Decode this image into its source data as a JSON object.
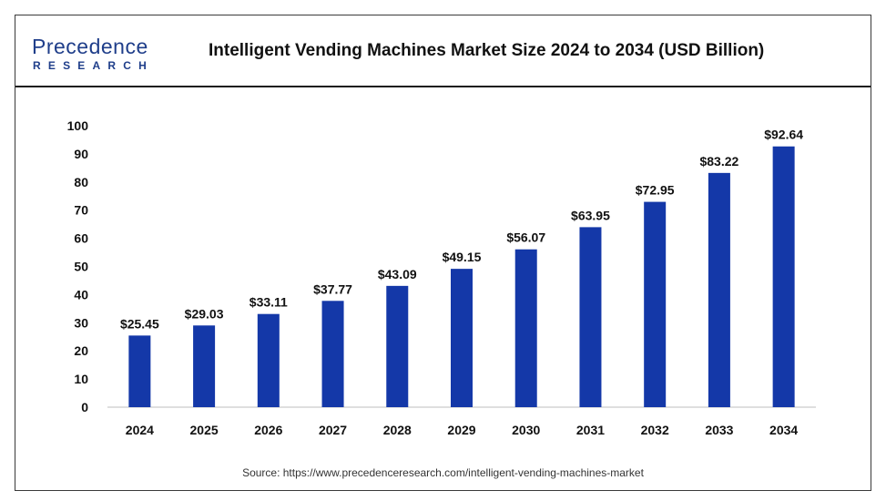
{
  "header": {
    "logo_text": "Precedence",
    "logo_subtext": "RESEARCH",
    "title": "Intelligent Vending Machines Market Size 2024 to 2034 (USD Billion)"
  },
  "footer": {
    "source": "Source: https://www.precedenceresearch.com/intelligent-vending-machines-market"
  },
  "colors": {
    "bar": "#1438a8",
    "brand": "#1f3e8a",
    "axis": "#bfbfbf"
  },
  "chart_data": {
    "type": "bar",
    "categories": [
      "2024",
      "2025",
      "2026",
      "2027",
      "2028",
      "2029",
      "2030",
      "2031",
      "2032",
      "2033",
      "2034"
    ],
    "values": [
      25.45,
      29.03,
      33.11,
      37.77,
      43.09,
      49.15,
      56.07,
      63.95,
      72.95,
      83.22,
      92.64
    ],
    "data_labels": [
      "$25.45",
      "$29.03",
      "$33.11",
      "$37.77",
      "$43.09",
      "$49.15",
      "$56.07",
      "$63.95",
      "$72.95",
      "$83.22",
      "$92.64"
    ],
    "ylim": [
      0,
      100
    ],
    "yticks": [
      0,
      10,
      20,
      30,
      40,
      50,
      60,
      70,
      80,
      90,
      100
    ],
    "grid": false,
    "legend": "none",
    "xlabel": "",
    "ylabel": ""
  }
}
